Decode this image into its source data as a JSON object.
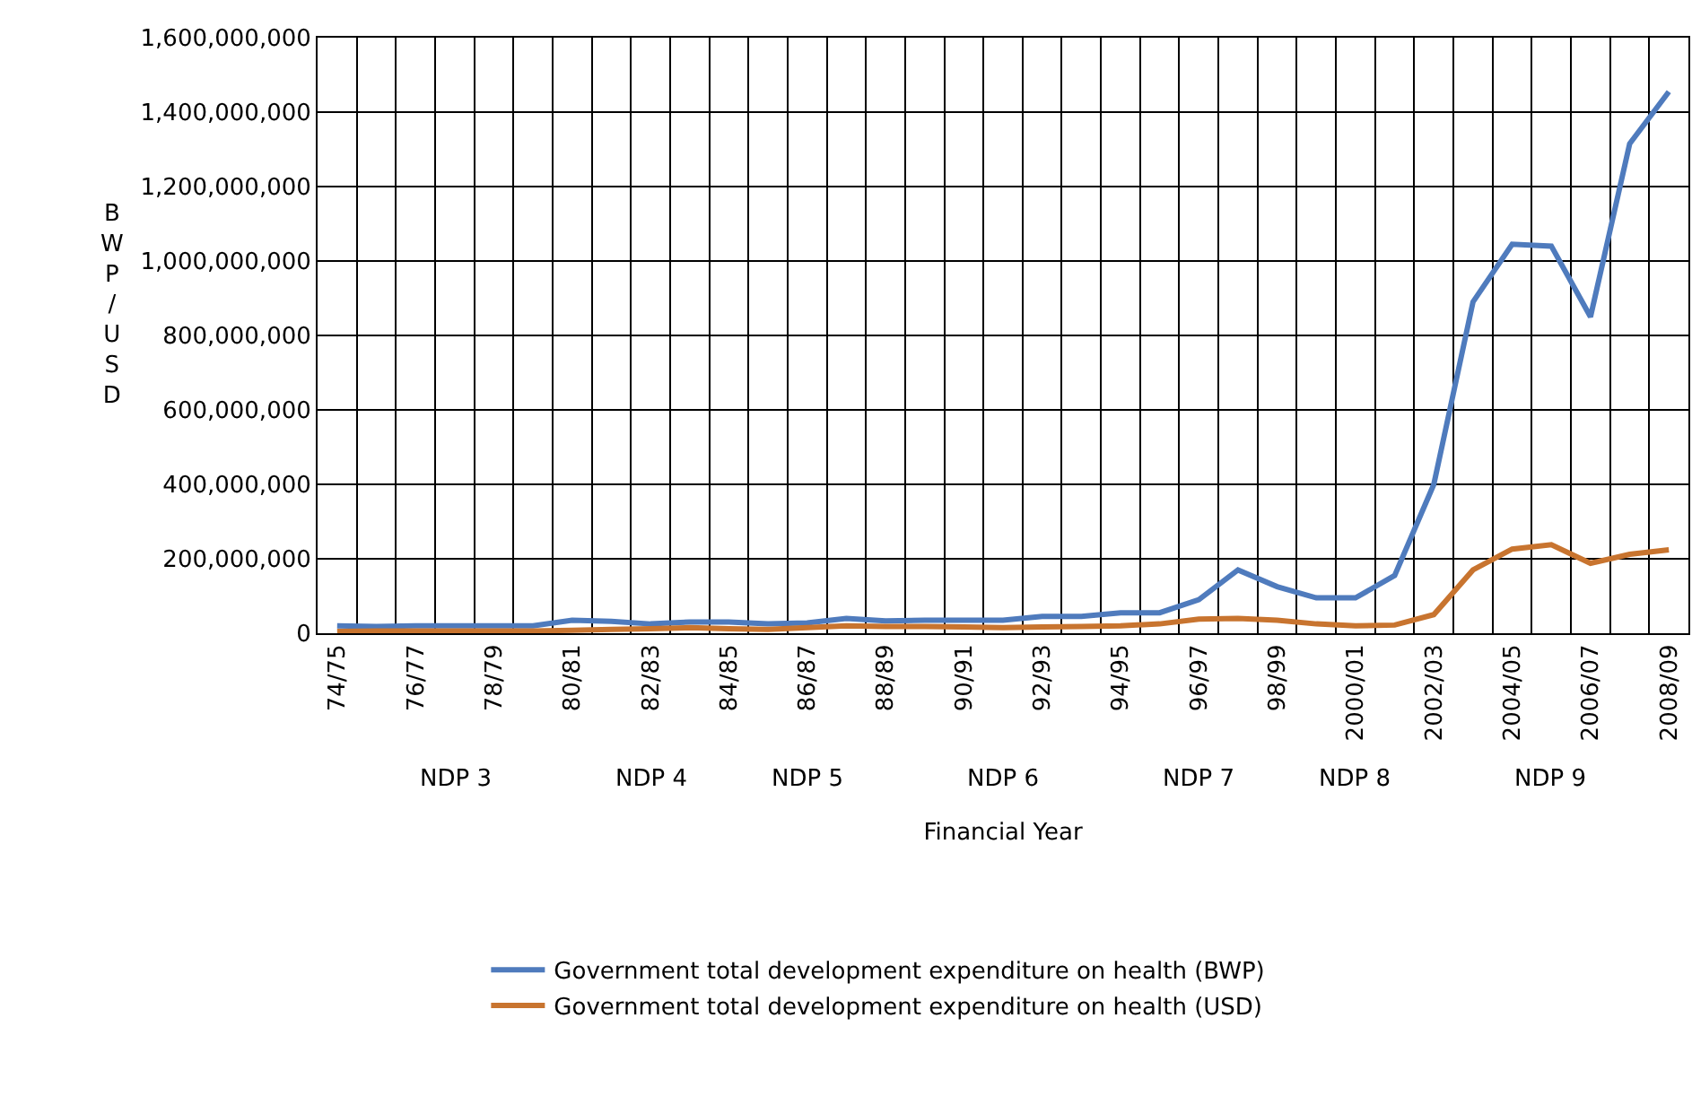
{
  "chart_data": {
    "type": "line",
    "xlabel": "Financial Year",
    "ylabel": "BWP/USD",
    "categories": [
      "74/75",
      null,
      "76/77",
      null,
      "78/79",
      null,
      "80/81",
      null,
      "82/83",
      null,
      "84/85",
      null,
      "86/87",
      null,
      "88/89",
      null,
      "90/91",
      null,
      "92/93",
      null,
      "94/95",
      null,
      "96/97",
      null,
      "98/99",
      null,
      "2000/01",
      null,
      "2002/03",
      null,
      "2004/05",
      null,
      "2006/07",
      null,
      "2008/09"
    ],
    "series": [
      {
        "name": "Government total development expenditure on health (BWP)",
        "color": "#4f7bbd",
        "values": [
          20000000,
          18000000,
          20000000,
          20000000,
          20000000,
          20000000,
          35000000,
          32000000,
          25000000,
          30000000,
          30000000,
          25000000,
          28000000,
          40000000,
          33000000,
          35000000,
          35000000,
          35000000,
          45000000,
          45000000,
          55000000,
          55000000,
          90000000,
          170000000,
          125000000,
          95000000,
          95000000,
          155000000,
          400000000,
          890000000,
          1045000000,
          1040000000,
          850000000,
          1315000000,
          1455000000
        ]
      },
      {
        "name": "Government total development expenditure on health (USD)",
        "color": "#c8742f",
        "values": [
          5000000,
          6000000,
          6000000,
          6000000,
          6000000,
          6000000,
          8000000,
          10000000,
          12000000,
          15000000,
          12000000,
          10000000,
          15000000,
          20000000,
          18000000,
          18000000,
          17000000,
          15000000,
          17000000,
          18000000,
          20000000,
          25000000,
          38000000,
          40000000,
          35000000,
          25000000,
          20000000,
          22000000,
          50000000,
          170000000,
          226000000,
          238000000,
          188000000,
          212000000,
          224000000
        ]
      }
    ],
    "ylim": [
      0,
      1600000000
    ],
    "yticks": [
      {
        "value": 0,
        "label": "0"
      },
      {
        "value": 200000000,
        "label": "200,000,000"
      },
      {
        "value": 400000000,
        "label": "400,000,000"
      },
      {
        "value": 600000000,
        "label": "600,000,000"
      },
      {
        "value": 800000000,
        "label": "800,000,000"
      },
      {
        "value": 1000000000,
        "label": "1,000,000,000"
      },
      {
        "value": 1200000000,
        "label": "1,200,000,000"
      },
      {
        "value": 1400000000,
        "label": "1,400,000,000"
      },
      {
        "value": 1600000000,
        "label": "1,600,000,000"
      }
    ],
    "annotations": [
      "NDP 3",
      "NDP 4",
      "NDP 5",
      "NDP 6",
      "NDP 7",
      "NDP 8",
      "NDP 9"
    ],
    "grid": true,
    "legend": "bottom",
    "marker": "none",
    "line_style": "solid"
  }
}
